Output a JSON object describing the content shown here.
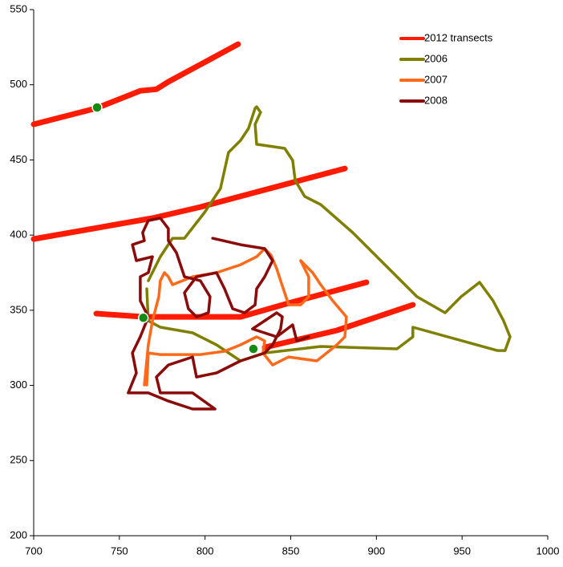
{
  "chart_data": {
    "type": "line",
    "xlim": [
      700,
      1000
    ],
    "xticks": [
      700,
      750,
      800,
      850,
      900,
      950,
      1000
    ],
    "ylim": [
      200,
      550
    ],
    "yticks": [
      200,
      250,
      300,
      350,
      400,
      450,
      500,
      550
    ],
    "grid": false,
    "legend": "top-right",
    "series": [
      {
        "name": "2012 transects",
        "color": "#ff1a00",
        "x": [
          700,
          736.5,
          762.2,
          771.6,
          778.6,
          819.3,
          null,
          700,
          769.3,
          797.3,
          881.6,
          null,
          736.5,
          764.6,
          820.7,
          848.8,
          894.2,
          null,
          834.8,
          876.9,
          921.3
        ],
        "values": [
          473.7,
          484.4,
          496,
          497,
          502,
          527,
          null,
          397.4,
          411.3,
          418.7,
          444.3,
          null,
          347.8,
          345.6,
          345.6,
          354.7,
          368.6,
          null,
          325.3,
          336.6,
          353.6
        ]
      },
      {
        "name": "2006",
        "color": "#808000",
        "x": [
          766.9,
          773.9,
          781.0,
          788.0,
          799.7,
          809.0,
          813.7,
          820.7,
          825.4,
          829.2,
          830.1,
          832.4,
          829.2,
          830.1,
          846.5,
          851.1,
          852.6,
          858.2,
          867.5,
          886.2,
          905.0,
          923.7,
          940.1,
          949.4,
          960.2,
          968.1,
          974.2,
          978.0,
          975.1,
          970.5,
          921.3,
          921.3,
          912.0,
          867.5,
          834.8,
          820.7,
          806.7,
          792.7,
          773.9,
          766.9,
          766.0
        ],
        "values": [
          369.6,
          385.6,
          397.9,
          397.9,
          415.0,
          431.0,
          455.0,
          463.0,
          471.0,
          484.4,
          485.4,
          481.7,
          473.7,
          460.4,
          457.7,
          449.7,
          436.3,
          425.7,
          420.3,
          401.7,
          380.3,
          359.0,
          348.3,
          359.0,
          368.6,
          356.3,
          343.0,
          332.3,
          323.2,
          323.2,
          338.7,
          332.3,
          324.3,
          325.9,
          321.6,
          316.3,
          327.0,
          335.0,
          338.7,
          343.0,
          364.3
        ]
      },
      {
        "name": "2007",
        "color": "#ff6a1a",
        "x": [
          766.0,
          766.9,
          773.9,
          797.3,
          811.4,
          820.7,
          830.1,
          834.8,
          833.8,
          839.4,
          848.8,
          865.2,
          876.9,
          881.6,
          882.5,
          874.5,
          867.5,
          862.8,
          858.2,
          855.8,
          860.5,
          860.5,
          855.8,
          848.8,
          844.1,
          841.8,
          838.5,
          834.8,
          830.1,
          820.7,
          806.7,
          792.7,
          781.0,
          778.6,
          776.3,
          773.9,
          773.0,
          769.3,
          766.9,
          764.6
        ],
        "values": [
          300.3,
          321.6,
          320.5,
          320.5,
          322.7,
          327.0,
          332.3,
          329.6,
          321.6,
          313.6,
          318.9,
          316.3,
          327.0,
          332.3,
          345.6,
          356.3,
          367.0,
          375.0,
          380.3,
          383.0,
          372.3,
          359.0,
          353.6,
          353.6,
          369.6,
          377.6,
          386.7,
          391.0,
          385.6,
          380.3,
          375.0,
          372.3,
          367.0,
          372.3,
          375.0,
          369.6,
          359.0,
          343.0,
          327.0,
          300.3
        ]
      },
      {
        "name": "2008",
        "color": "#8b0a0a",
        "x": [
          804.4,
          820.7,
          834.8,
          839.4,
          834.8,
          830.1,
          829.2,
          823.1,
          816.1,
          811.4,
          806.7,
          795.0,
          788.0,
          790.3,
          795.0,
          802.0,
          802.9,
          797.3,
          788.0,
          783.3,
          778.6,
          778.6,
          773.9,
          766.9,
          763.6,
          764.6,
          757.6,
          759.9,
          769.3,
          766.9,
          762.2,
          762.2,
          766.9,
          762.2,
          757.6,
          759.9,
          755.2,
          766.9,
          778.6,
          792.7,
          805.8,
          792.7,
          773.9,
          771.6,
          778.6,
          792.7,
          795.0,
          806.7,
          820.7,
          834.8,
          839.4,
          844.1,
          845.1,
          841.8,
          834.8,
          827.7,
          841.8,
          851.1,
          853.5,
          860.5
        ],
        "values": [
          397.9,
          393.6,
          391.0,
          383.0,
          372.3,
          364.3,
          353.6,
          348.3,
          351.0,
          364.3,
          375.0,
          372.3,
          361.6,
          351.0,
          345.6,
          348.3,
          359.0,
          369.6,
          372.3,
          388.3,
          396.3,
          404.3,
          411.3,
          409.7,
          401.7,
          396.3,
          393.6,
          383.0,
          385.6,
          375.0,
          372.3,
          356.3,
          345.6,
          332.3,
          321.6,
          308.3,
          295.0,
          295.0,
          289.6,
          284.3,
          284.3,
          295.0,
          295.0,
          305.6,
          313.6,
          318.9,
          305.6,
          308.3,
          316.3,
          321.6,
          327.0,
          337.6,
          345.6,
          348.3,
          343.0,
          337.6,
          332.3,
          340.3,
          329.6,
          332.3
        ]
      }
    ],
    "markers": {
      "color": "#138a13",
      "x": [
        737,
        764,
        828.2
      ],
      "values": [
        484.9,
        345,
        324.3
      ]
    }
  }
}
